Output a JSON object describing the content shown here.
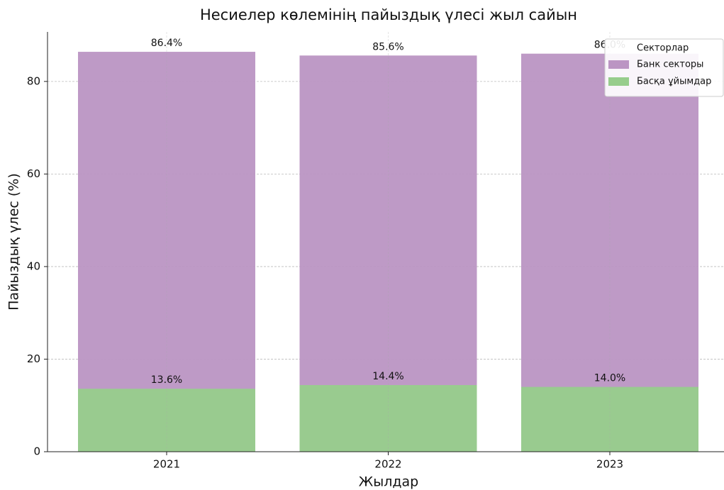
{
  "chart_data": {
    "type": "bar",
    "barmode": "overlay",
    "title": "Несиелер көлемінің пайыздық үлесі жыл сайын",
    "x_label": "Жылдар",
    "y_label": "Пайыздық үлес (%)",
    "categories": [
      "2021",
      "2022",
      "2023"
    ],
    "series": [
      {
        "name": "Банк секторы",
        "color": "#bb95c3",
        "values": [
          86.4,
          85.6,
          86.0
        ],
        "value_labels": [
          "86.4%",
          "85.6%",
          "86.0%"
        ]
      },
      {
        "name": "Басқа ұйымдар",
        "color": "#97cd8c",
        "values": [
          13.6,
          14.4,
          14.0
        ],
        "value_labels": [
          "13.6%",
          "14.4%",
          "14.0%"
        ]
      }
    ],
    "ylim": [
      0,
      90.7
    ],
    "yticks": [
      0,
      20,
      40,
      60,
      80
    ],
    "grid": true,
    "legend": {
      "title": "Секторлар",
      "position": "upper right"
    }
  }
}
